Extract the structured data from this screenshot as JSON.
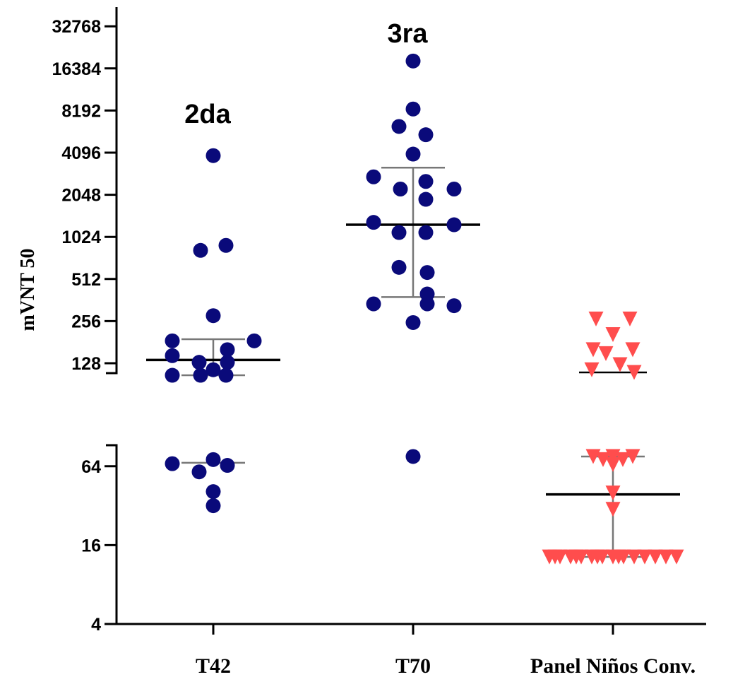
{
  "chart_data": {
    "type": "scatter",
    "ylabel": "mVNT 50",
    "y_scale": "log2",
    "y_ticks_upper": [
      "128",
      "256",
      "512",
      "1024",
      "2048",
      "4096",
      "8192",
      "16384",
      "32768"
    ],
    "y_ticks_lower": [
      "4",
      "16",
      "64"
    ],
    "axis_break": true,
    "categories": [
      "T42",
      "T70",
      "Panel Niños Conv."
    ],
    "annotations": [
      {
        "text": "2da",
        "category": "T42"
      },
      {
        "text": "3ra",
        "category": "T70"
      }
    ],
    "colors": {
      "T42": "#0a0a7a",
      "T70": "#0a0a7a",
      "Panel Niños Conv.": "#ff4d4d",
      "line": "#000000",
      "errorbar": "#777777"
    },
    "series": [
      {
        "name": "T42",
        "marker": "circle",
        "values": [
          3900,
          820,
          890,
          280,
          185,
          185,
          160,
          145,
          130,
          130,
          115,
          105,
          105,
          105,
          72,
          67,
          65,
          58,
          41,
          32
        ],
        "median": 135,
        "iqr": [
          105,
          190
        ],
        "median_lower": 68
      },
      {
        "name": "T70",
        "marker": "circle",
        "values": [
          18500,
          8400,
          6300,
          5500,
          4000,
          2750,
          2550,
          2250,
          2250,
          1900,
          1300,
          1250,
          1100,
          1100,
          620,
          570,
          400,
          340,
          340,
          330,
          250,
          76
        ],
        "median": 1250,
        "iqr": [
          380,
          3200
        ]
      },
      {
        "name": "Panel Niños Conv.",
        "marker": "triangle-down",
        "values": [
          265,
          265,
          205,
          160,
          160,
          150,
          125,
          115,
          110,
          76,
          76,
          76,
          72,
          72,
          66,
          40,
          30,
          13,
          13,
          13,
          13,
          13,
          13,
          13,
          13,
          13,
          13,
          13,
          13,
          13,
          13,
          13,
          13,
          13
        ],
        "median_upper": 110,
        "median": 39,
        "iqr": [
          13,
          76
        ]
      }
    ]
  }
}
